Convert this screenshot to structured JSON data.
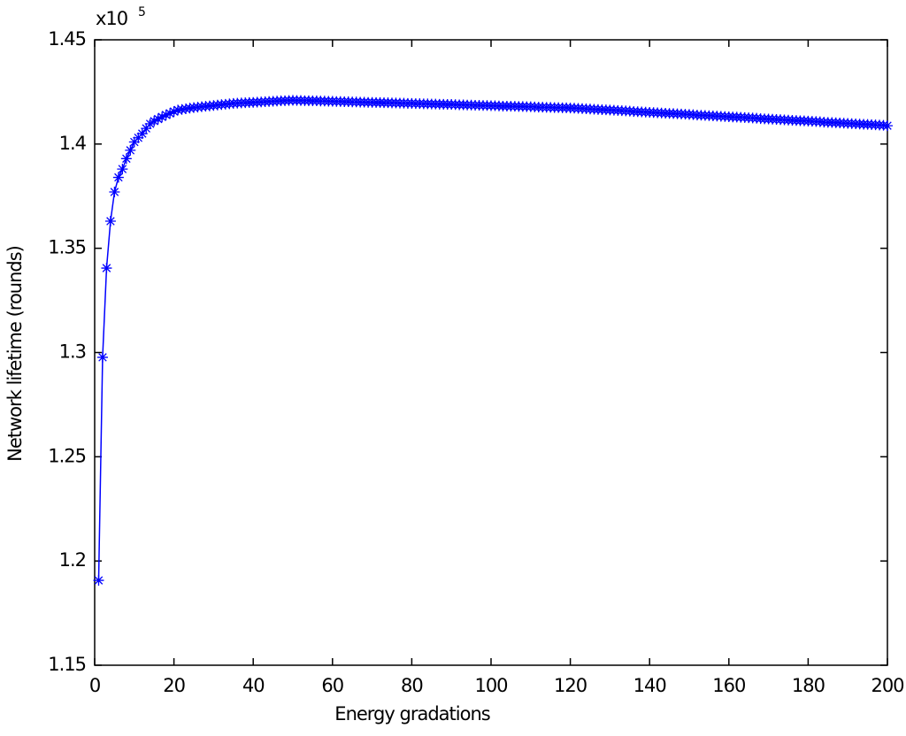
{
  "chart_data": {
    "type": "line",
    "x_label": "Energy gradations",
    "y_label": "Network lifetime (rounds)",
    "y_scale_base": "x10",
    "y_scale_power": "5",
    "xlim": [
      0,
      200
    ],
    "xticks": [
      0,
      20,
      40,
      60,
      80,
      100,
      120,
      140,
      160,
      180,
      200
    ],
    "ylim": [
      1.15,
      1.45
    ],
    "yticks": [
      1.15,
      1.2,
      1.25,
      1.3,
      1.35,
      1.4,
      1.45
    ],
    "grid": false,
    "x": [
      1,
      2,
      3,
      4,
      5,
      6,
      7,
      8,
      9,
      10,
      11,
      12,
      13,
      14,
      15,
      16,
      17,
      18,
      19,
      20,
      21,
      22,
      23,
      24,
      25,
      26,
      27,
      28,
      29,
      30,
      31,
      32,
      33,
      34,
      35,
      36,
      37,
      38,
      39,
      40,
      41,
      42,
      43,
      44,
      45,
      46,
      47,
      48,
      49,
      50,
      51,
      52,
      53,
      54,
      55,
      56,
      57,
      58,
      59,
      60,
      61,
      62,
      63,
      64,
      65,
      66,
      67,
      68,
      69,
      70,
      71,
      72,
      73,
      74,
      75,
      76,
      77,
      78,
      79,
      80,
      81,
      82,
      83,
      84,
      85,
      86,
      87,
      88,
      89,
      90,
      91,
      92,
      93,
      94,
      95,
      96,
      97,
      98,
      99,
      100,
      101,
      102,
      103,
      104,
      105,
      106,
      107,
      108,
      109,
      110,
      111,
      112,
      113,
      114,
      115,
      116,
      117,
      118,
      119,
      120,
      121,
      122,
      123,
      124,
      125,
      126,
      127,
      128,
      129,
      130,
      131,
      132,
      133,
      134,
      135,
      136,
      137,
      138,
      139,
      140,
      141,
      142,
      143,
      144,
      145,
      146,
      147,
      148,
      149,
      150,
      151,
      152,
      153,
      154,
      155,
      156,
      157,
      158,
      159,
      160,
      161,
      162,
      163,
      164,
      165,
      166,
      167,
      168,
      169,
      170,
      171,
      172,
      173,
      174,
      175,
      176,
      177,
      178,
      179,
      180,
      181,
      182,
      183,
      184,
      185,
      186,
      187,
      188,
      189,
      190,
      191,
      192,
      193,
      194,
      195,
      196,
      197,
      198,
      199,
      200
    ],
    "series": [
      {
        "color": "#0000ff",
        "values": [
          1.1907,
          1.2977,
          1.3405,
          1.363,
          1.377,
          1.384,
          1.388,
          1.393,
          1.397,
          1.401,
          1.403,
          1.405,
          1.4075,
          1.4097,
          1.411,
          1.412,
          1.413,
          1.414,
          1.4147,
          1.4156,
          1.4163,
          1.4166,
          1.4169,
          1.4172,
          1.4175,
          1.4177,
          1.4179,
          1.4181,
          1.4183,
          1.4185,
          1.4187,
          1.4189,
          1.4191,
          1.4193,
          1.4195,
          1.4196,
          1.4197,
          1.4198,
          1.4199,
          1.42,
          1.4201,
          1.4202,
          1.4203,
          1.4204,
          1.4205,
          1.4206,
          1.4207,
          1.4208,
          1.4209,
          1.421,
          1.4209,
          1.4209,
          1.4208,
          1.4208,
          1.4207,
          1.4207,
          1.4206,
          1.4206,
          1.4205,
          1.4205,
          1.4204,
          1.4204,
          1.4203,
          1.4203,
          1.4202,
          1.4202,
          1.4201,
          1.4201,
          1.42,
          1.42,
          1.4199,
          1.4199,
          1.4198,
          1.4198,
          1.4197,
          1.4197,
          1.4196,
          1.4196,
          1.4195,
          1.4195,
          1.4194,
          1.4194,
          1.4193,
          1.4193,
          1.4192,
          1.4192,
          1.4191,
          1.4191,
          1.419,
          1.419,
          1.4189,
          1.4188,
          1.4188,
          1.4187,
          1.4187,
          1.4186,
          1.4186,
          1.4185,
          1.4185,
          1.4184,
          1.4184,
          1.4183,
          1.4182,
          1.4182,
          1.4181,
          1.4181,
          1.418,
          1.418,
          1.4179,
          1.4179,
          1.4178,
          1.4177,
          1.4177,
          1.4176,
          1.4176,
          1.4175,
          1.4175,
          1.4174,
          1.4174,
          1.4173,
          1.4172,
          1.4171,
          1.417,
          1.4169,
          1.4168,
          1.4167,
          1.4166,
          1.4165,
          1.4164,
          1.4163,
          1.4162,
          1.4161,
          1.416,
          1.4159,
          1.4158,
          1.4156,
          1.4155,
          1.4154,
          1.4153,
          1.4152,
          1.4151,
          1.415,
          1.4149,
          1.4148,
          1.4147,
          1.4146,
          1.4145,
          1.4144,
          1.4143,
          1.4142,
          1.4141,
          1.4139,
          1.4138,
          1.4137,
          1.4136,
          1.4135,
          1.4134,
          1.4133,
          1.4132,
          1.4131,
          1.413,
          1.4129,
          1.4128,
          1.4127,
          1.4126,
          1.4125,
          1.4124,
          1.4122,
          1.4121,
          1.412,
          1.4119,
          1.4118,
          1.4117,
          1.4116,
          1.4115,
          1.4114,
          1.4113,
          1.4112,
          1.4111,
          1.411,
          1.4109,
          1.4108,
          1.4107,
          1.4105,
          1.4104,
          1.4103,
          1.4102,
          1.4101,
          1.41,
          1.4099,
          1.4098,
          1.4097,
          1.4096,
          1.4095,
          1.4094,
          1.4093,
          1.4092,
          1.4091,
          1.409,
          1.4088
        ]
      }
    ]
  }
}
